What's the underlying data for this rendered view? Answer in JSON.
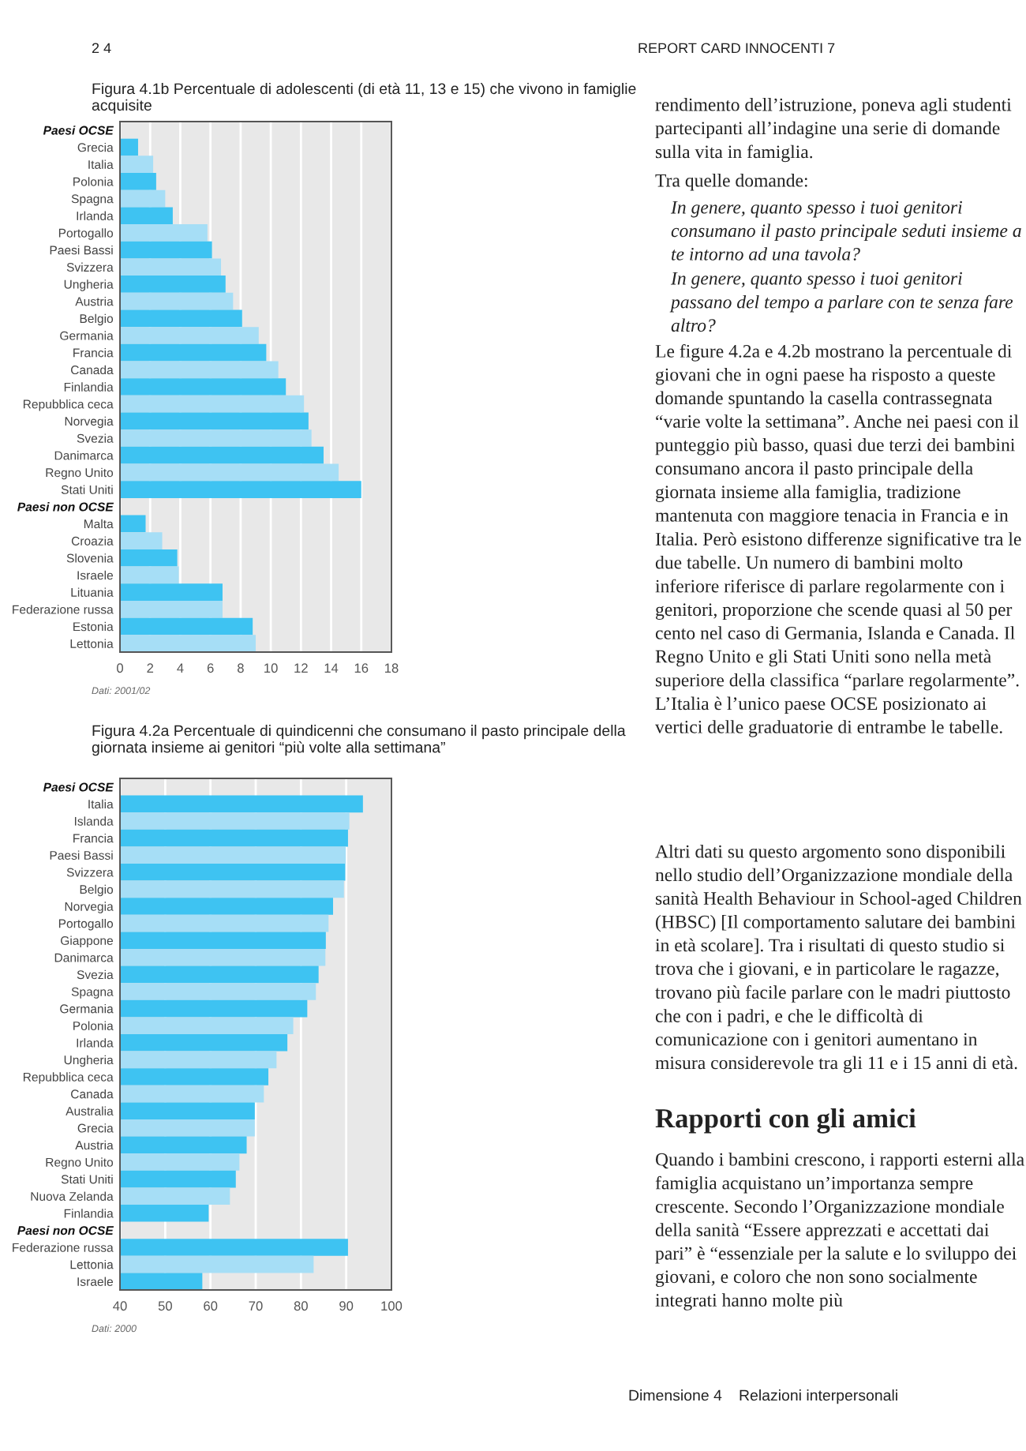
{
  "chart_data": [
    {
      "type": "other",
      "annotations": [
        "2 4",
        "REPORT CARD INNOCENTI 7"
      ]
    },
    {
      "type": "bar",
      "orientation": "horizontal",
      "title": "Figura 4.1b Percentuale di adolescenti (di età 11, 13 e 15) che vivono in famiglie acquisite",
      "categories": [
        "Paesi OCSE",
        "Grecia",
        "Italia",
        "Polonia",
        "Spagna",
        "Irlanda",
        "Portogallo",
        "Paesi Bassi",
        "Svizzera",
        "Ungheria",
        "Austria",
        "Belgio",
        "Germania",
        "Francia",
        "Canada",
        "Finlandia",
        "Repubblica ceca",
        "Norvegia",
        "Svezia",
        "Danimarca",
        "Regno Unito",
        "Stati Uniti",
        "Paesi non OCSE",
        "Malta",
        "Croazia",
        "Slovenia",
        "Israele",
        "Lituania",
        "Federazione russa",
        "Estonia",
        "Lettonia"
      ],
      "values": [
        null,
        1.2,
        2.2,
        2.4,
        3.0,
        3.5,
        5.8,
        6.1,
        6.7,
        7.0,
        7.5,
        8.1,
        9.2,
        9.7,
        10.5,
        11.0,
        12.2,
        12.5,
        12.7,
        13.5,
        14.5,
        16.0,
        null,
        1.7,
        2.8,
        3.8,
        3.9,
        6.8,
        6.8,
        8.8,
        9.0
      ],
      "colors": [
        null,
        "#3ec3f2",
        "#a6def6",
        "#3ec3f2",
        "#a6def6",
        "#3ec3f2",
        "#a6def6",
        "#3ec3f2",
        "#a6def6",
        "#3ec3f2",
        "#a6def6",
        "#3ec3f2",
        "#a6def6",
        "#3ec3f2",
        "#a6def6",
        "#3ec3f2",
        "#a6def6",
        "#3ec3f2",
        "#a6def6",
        "#3ec3f2",
        "#a6def6",
        "#3ec3f2",
        null,
        "#3ec3f2",
        "#a6def6",
        "#3ec3f2",
        "#a6def6",
        "#3ec3f2",
        "#a6def6",
        "#3ec3f2",
        "#a6def6"
      ],
      "xlim": [
        0,
        18
      ],
      "xticks": [
        0,
        2,
        4,
        6,
        8,
        10,
        12,
        14,
        16,
        18
      ],
      "grid": "x",
      "legend": false,
      "annotations": [
        "Dati: 2001/02"
      ]
    },
    {
      "type": "bar",
      "orientation": "horizontal",
      "title": "Figura 4.2a Percentuale di quindicenni che consumano il pasto principale della giornata insieme ai genitori “più volte alla settimana”",
      "categories": [
        "Paesi OCSE",
        "Italia",
        "Islanda",
        "Francia",
        "Paesi Bassi",
        "Svizzera",
        "Belgio",
        "Norvegia",
        "Portogallo",
        "Giappone",
        "Danimarca",
        "Svezia",
        "Spagna",
        "Germania",
        "Polonia",
        "Irlanda",
        "Ungheria",
        "Repubblica ceca",
        "Canada",
        "Australia",
        "Grecia",
        "Austria",
        "Regno Unito",
        "Stati Uniti",
        "Nuova Zelanda",
        "Finlandia",
        "Paesi non OCSE",
        "Federazione russa",
        "Lettonia",
        "Israele"
      ],
      "values": [
        null,
        93.7,
        90.7,
        90.4,
        89.9,
        89.8,
        89.5,
        87.1,
        86.1,
        85.5,
        85.4,
        83.9,
        83.3,
        81.4,
        78.3,
        77.0,
        74.6,
        72.8,
        71.8,
        69.8,
        69.8,
        68.0,
        66.4,
        65.6,
        64.3,
        59.6,
        null,
        90.4,
        82.8,
        58.2
      ],
      "colors": [
        null,
        "#3ec3f2",
        "#a6def6",
        "#3ec3f2",
        "#a6def6",
        "#3ec3f2",
        "#a6def6",
        "#3ec3f2",
        "#a6def6",
        "#3ec3f2",
        "#a6def6",
        "#3ec3f2",
        "#a6def6",
        "#3ec3f2",
        "#a6def6",
        "#3ec3f2",
        "#a6def6",
        "#3ec3f2",
        "#a6def6",
        "#3ec3f2",
        "#a6def6",
        "#3ec3f2",
        "#a6def6",
        "#3ec3f2",
        "#a6def6",
        "#3ec3f2",
        null,
        "#3ec3f2",
        "#a6def6",
        "#3ec3f2"
      ],
      "xlim": [
        40,
        100
      ],
      "xticks": [
        40,
        50,
        60,
        70,
        80,
        90,
        100
      ],
      "grid": "x",
      "legend": false,
      "annotations": [
        "Dati: 2000"
      ]
    },
    {
      "type": "other",
      "annotations": [
        "rendimento dell’istruzione, poneva agli studenti partecipanti all’indagine una serie di domande sulla vita in famiglia.",
        "Tra quelle domande:",
        "In genere, quanto spesso i tuoi genitori consumano il pasto principale seduti insieme a te intorno ad una tavola?",
        "In genere, quanto spesso i tuoi genitori passano del tempo a parlare con te senza fare altro?",
        "Le figure 4.2a e 4.2b mostrano la percentuale di giovani che in ogni paese ha risposto a queste domande spuntando la casella contrassegnata “varie volte la settimana”. Anche nei paesi con il punteggio più basso, quasi due terzi dei bambini consumano ancora il pasto principale della giornata insieme alla famiglia, tradizione mantenuta con maggiore tenacia in Francia e in Italia. Però esistono differenze significative tra le due tabelle. Un numero di bambini molto inferiore riferisce di parlare regolarmente con i genitori, proporzione che scende quasi al 50 per cento nel caso di Germania, Islanda e Canada. Il Regno Unito e gli Stati Uniti sono nella metà superiore della classifica “parlare regolarmente”. L’Italia è l’unico paese OCSE posizionato ai vertici delle graduatorie di entrambe le tabelle.",
        "Altri dati su questo argomento sono disponibili nello studio dell’Organizzazione mondiale della sanità Health Behaviour in School-aged Children (HBSC) [Il comportamento salutare dei bambini in età scolare]. Tra i risultati di questo studio si trova che i giovani, e in particolare le ragazze, trovano più facile parlare con le madri piuttosto che con i padri, e che le difficoltà di comunicazione con i genitori aumentano in misura considerevole tra gli 11 e i 15 anni di età."
      ]
    },
    {
      "type": "other",
      "title": "Rapporti con gli amici",
      "annotations": [
        "Quando i bambini crescono, i rapporti esterni alla famiglia acquistano un’importanza sempre crescente. Secondo l’Organizzazione mondiale della sanità “Essere apprezzati e accettati dai pari” è “essenziale per la salute e lo sviluppo dei giovani, e coloro che non sono socialmente integrati hanno molte più"
      ]
    },
    {
      "type": "other",
      "annotations": [
        "Dimensione 4",
        "Relazioni interpersonali"
      ]
    }
  ]
}
